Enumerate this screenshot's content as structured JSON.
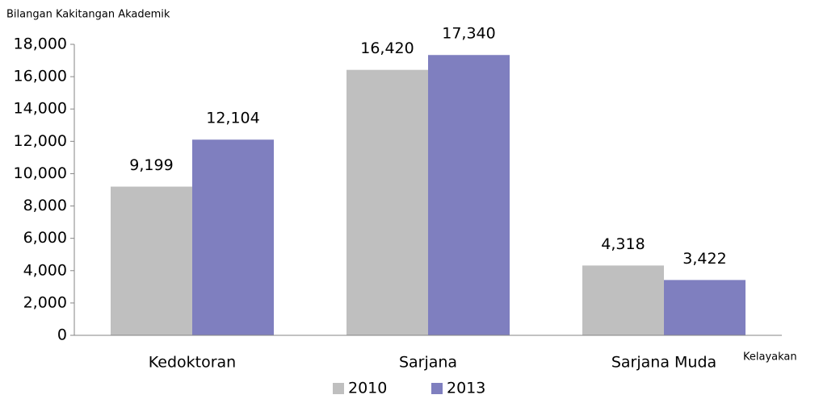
{
  "chart_data": {
    "type": "bar",
    "y_label": "Bilangan Kakitangan Akademik",
    "x_label": "Kelayakan",
    "categories": [
      "Kedoktoran",
      "Sarjana",
      "Sarjana Muda"
    ],
    "series": [
      {
        "name": "2010",
        "color": "#bfbfbf",
        "values": [
          9199,
          16420,
          4318
        ],
        "value_labels": [
          "9,199",
          "16,420",
          "4,318"
        ]
      },
      {
        "name": "2013",
        "color": "#7f7fbf",
        "values": [
          12104,
          17340,
          3422
        ],
        "value_labels": [
          "12,104",
          "17,340",
          "3,422"
        ]
      }
    ],
    "ylim": [
      0,
      18000
    ],
    "yticks": [
      0,
      {
        "value": 2000,
        "label": "2,000"
      },
      {
        "value": 4000,
        "label": "4,000"
      },
      {
        "value": 6000,
        "label": "6,000"
      },
      {
        "value": 8000,
        "label": "8,000"
      },
      {
        "value": 10000,
        "label": "10,000"
      },
      {
        "value": 12000,
        "label": "12,000"
      },
      {
        "value": 14000,
        "label": "14,000"
      },
      {
        "value": 16000,
        "label": "16,000"
      },
      {
        "value": 18000,
        "label": "18,000"
      }
    ],
    "grid": false,
    "legend": "bottom"
  }
}
